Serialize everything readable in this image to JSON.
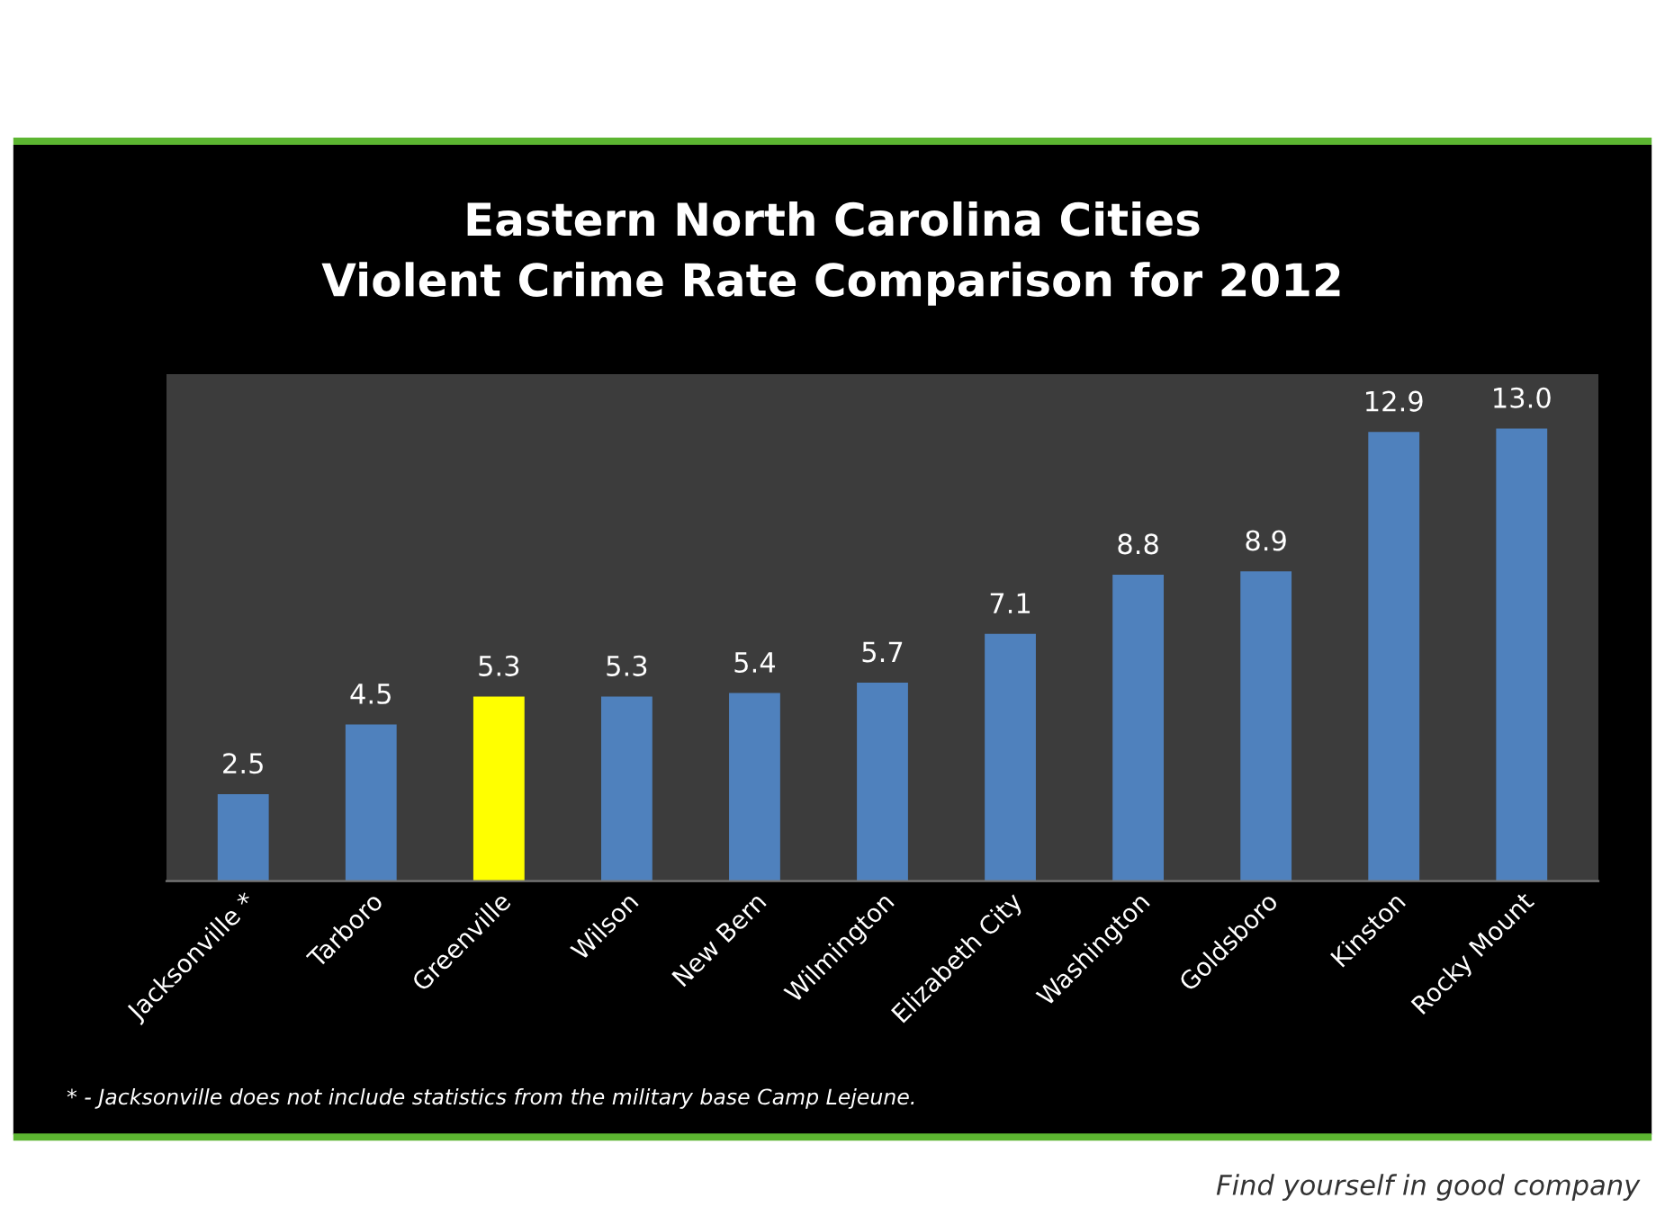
{
  "chart_data": {
    "type": "bar",
    "title": "Eastern North Carolina Cities\nViolent Crime Rate Comparison for 2012",
    "categories": [
      "Jacksonville *",
      "Tarboro",
      "Greenville",
      "Wilson",
      "New Bern",
      "Wilmington",
      "Elizabeth City",
      "Washington",
      "Goldsboro",
      "Kinston",
      "Rocky Mount"
    ],
    "values": [
      2.5,
      4.5,
      5.3,
      5.3,
      5.4,
      5.7,
      7.1,
      8.8,
      8.9,
      12.9,
      13.0
    ],
    "value_labels": [
      "2.5",
      "4.5",
      "5.3",
      "5.3",
      "5.4",
      "5.7",
      "7.1",
      "8.8",
      "8.9",
      "12.9",
      "13.0"
    ],
    "colors": [
      "#4f81bd",
      "#4f81bd",
      "#ffff00",
      "#4f81bd",
      "#4f81bd",
      "#4f81bd",
      "#4f81bd",
      "#4f81bd",
      "#4f81bd",
      "#4f81bd",
      "#4f81bd"
    ],
    "tick_labels": "x",
    "grid": false,
    "legend": false,
    "annotations": [
      "* - Jacksonville does not include statistics from the military base Camp Lejeune.",
      "Find yourself in good company"
    ]
  }
}
